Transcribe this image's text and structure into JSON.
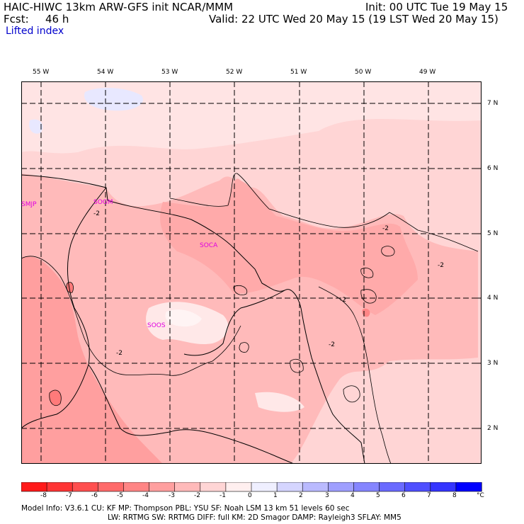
{
  "header": {
    "title": "HAIC-HIWC 13km ARW-GFS init   NCAR/MMM",
    "init": "Init: 00 UTC Tue 19 May 15",
    "fcst_label": "Fcst:",
    "fcst_value": "46 h",
    "valid": "Valid: 22 UTC Wed 20 May 15 (19 LST Wed 20 May 15)",
    "field": "Lifted index"
  },
  "map": {
    "lon_labels": [
      "55 W",
      "54 W",
      "53 W",
      "52 W",
      "51 W",
      "50 W",
      "49 W"
    ],
    "lat_labels": [
      "7 N",
      "6 N",
      "5 N",
      "4 N",
      "3 N",
      "2 N"
    ],
    "stations": [
      "SMJP",
      "SOGM",
      "SOCA",
      "SOOS"
    ],
    "contour_labels": [
      "-2",
      "-2",
      "-2",
      "-2",
      "-2",
      "-2"
    ]
  },
  "colorbar": {
    "ticks": [
      "-8",
      "-7",
      "-6",
      "-5",
      "-4",
      "-3",
      "-2",
      "-1",
      "0",
      "1",
      "2",
      "3",
      "4",
      "5",
      "6",
      "7",
      "8"
    ],
    "unit": "°C",
    "colors": [
      "#ff1a1a",
      "#ff3535",
      "#ff4f4f",
      "#ff6a6a",
      "#ff8585",
      "#ff9f9f",
      "#ffbaba",
      "#ffd5d5",
      "#ffefef",
      "#efefff",
      "#d5d5ff",
      "#babaff",
      "#9f9fff",
      "#8585ff",
      "#6a6aff",
      "#4f4fff",
      "#3535ff",
      "#0000ff"
    ]
  },
  "footer": {
    "line1": "Model Info: V3.6.1    CU: KF      MP: Thompson     PBL: YSU        SF: Noah LSM     13 km   51 levels   60 sec",
    "line2": "LW: RRTMG    SW: RRTMG   DIFF: full    KM: 2D Smagor  DAMP: Rayleigh3   SFLAY: MM5"
  }
}
